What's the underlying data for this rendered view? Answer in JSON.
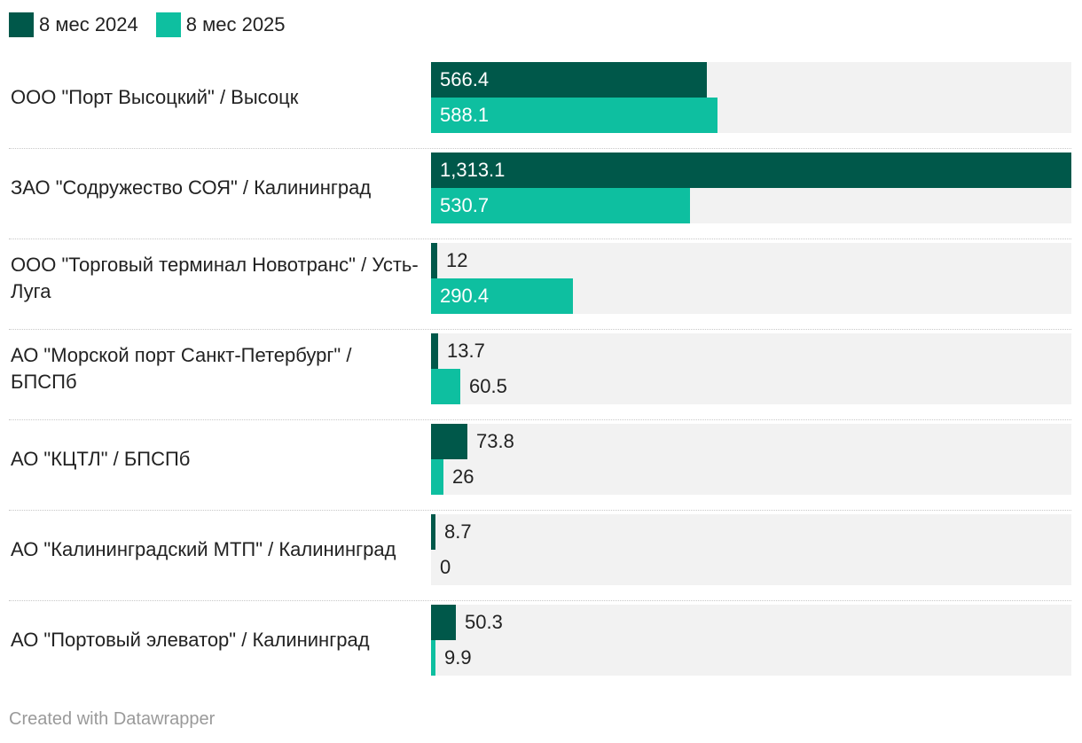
{
  "chart_data": {
    "type": "bar",
    "orientation": "horizontal",
    "legend_position": "top-left",
    "grid": false,
    "xlim": [
      0,
      1313.1
    ],
    "categories": [
      "ООО \"Порт Высоцкий\" / Высоцк",
      "ЗАО \"Содружество СОЯ\" / Калининград",
      "ООО \"Торговый терминал Новотранс\" / Усть-Луга",
      "АО \"Морской порт Санкт-Петербург\" / БПСПб",
      "АО \"КЦТЛ\" / БПСПб",
      "АО \"Калининградский МТП\" / Калининград",
      "АО \"Портовый элеватор\" / Калининград"
    ],
    "series": [
      {
        "name": "8 мес 2024",
        "color": "#00584a",
        "values": [
          566.4,
          1313.1,
          12,
          13.7,
          73.8,
          8.7,
          50.3
        ],
        "labels": [
          "566.4",
          "1,313.1",
          "12",
          "13.7",
          "73.8",
          "8.7",
          "50.3"
        ]
      },
      {
        "name": "8 мес 2025",
        "color": "#0ebfa0",
        "values": [
          588.1,
          530.7,
          290.4,
          60.5,
          26,
          0,
          9.9
        ],
        "labels": [
          "588.1",
          "530.7",
          "290.4",
          "60.5",
          "26",
          "0",
          "9.9"
        ]
      }
    ],
    "track_color": "#f2f2f2"
  },
  "footer": "Created with Datawrapper"
}
